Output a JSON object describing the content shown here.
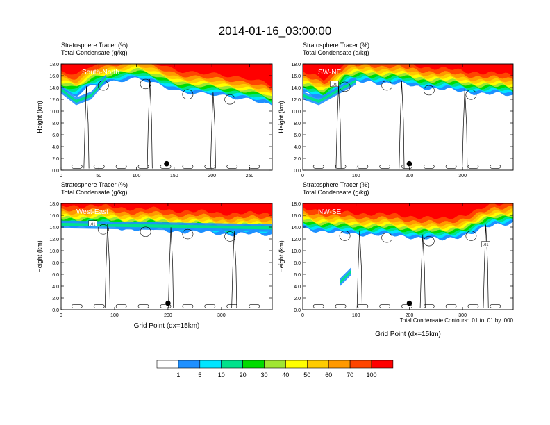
{
  "figure": {
    "title": "2014-01-16_03:00:00",
    "contour_note": "Total Condensate Contours: .01 to .01 by .000",
    "colorbar": {
      "colors": [
        "#ffffff",
        "#1e90ff",
        "#00e5ff",
        "#00e28c",
        "#00dc00",
        "#a0e632",
        "#ffff00",
        "#ffcc00",
        "#ff9900",
        "#ff4500",
        "#ff0000"
      ],
      "labels": [
        "1",
        "5",
        "10",
        "20",
        "30",
        "40",
        "50",
        "60",
        "70",
        "100"
      ]
    }
  },
  "chart_data": [
    {
      "type": "heatmap",
      "title_line1": "Stratosphere Tracer   (%)",
      "title_line2": "Total Condensate   (g/kg)",
      "panel_label": "South-North",
      "xlabel": "",
      "ylabel": "Height (km)",
      "xlim": [
        0,
        280
      ],
      "ylim": [
        0,
        18
      ],
      "xticks": [
        "0",
        "50",
        "100",
        "150",
        "200",
        "250"
      ],
      "yticks": [
        "0.0",
        "2.0",
        "4.0",
        "6.0",
        "8.0",
        "10.0",
        "12.0",
        "14.0",
        "16.0",
        "18.0"
      ],
      "contour_label": "",
      "location_marker_x": 140,
      "tropopause_km": [
        [
          0,
          14.5
        ],
        [
          20,
          13.6
        ],
        [
          40,
          15.4
        ],
        [
          70,
          16.4
        ],
        [
          100,
          16.6
        ],
        [
          130,
          15.6
        ],
        [
          160,
          14.6
        ],
        [
          190,
          14.0
        ],
        [
          220,
          13.6
        ],
        [
          250,
          13.4
        ],
        [
          270,
          12.6
        ],
        [
          280,
          11.8
        ]
      ],
      "anvil_region": [
        [
          0,
          13.0
        ],
        [
          20,
          11.0
        ],
        [
          40,
          12.0
        ],
        [
          60,
          15.0
        ]
      ]
    },
    {
      "type": "heatmap",
      "title_line1": "Stratosphere Tracer   (%)",
      "title_line2": "Total Condensate   (g/kg)",
      "panel_label": "SW-NE",
      "xlabel": "",
      "ylabel": "Height (km)",
      "xlim": [
        0,
        395
      ],
      "ylim": [
        0,
        18
      ],
      "xticks": [
        "0",
        "100",
        "200",
        "300"
      ],
      "yticks": [
        "0.0",
        "2.0",
        "4.0",
        "6.0",
        "8.0",
        "10.0",
        "12.0",
        "14.0",
        "16.0",
        "18.0"
      ],
      "contour_label": ".01",
      "location_marker_x": 200,
      "tropopause_km": [
        [
          0,
          14.2
        ],
        [
          40,
          13.2
        ],
        [
          80,
          15.8
        ],
        [
          120,
          16.2
        ],
        [
          180,
          15.8
        ],
        [
          230,
          15.2
        ],
        [
          290,
          14.6
        ],
        [
          340,
          14.2
        ],
        [
          395,
          13.8
        ]
      ],
      "anvil_region": [
        [
          0,
          12.0
        ],
        [
          30,
          11.0
        ],
        [
          60,
          12.5
        ],
        [
          100,
          14.5
        ]
      ]
    },
    {
      "type": "heatmap",
      "title_line1": "Stratosphere Tracer   (%)",
      "title_line2": "Total Condensate   (g/kg)",
      "panel_label": "West-East",
      "xlabel": "Grid Point (dx=15km)",
      "ylabel": "Height (km)",
      "xlim": [
        0,
        395
      ],
      "ylim": [
        0,
        18
      ],
      "xticks": [
        "0",
        "100",
        "200",
        "300"
      ],
      "yticks": [
        "0.0",
        "2.0",
        "4.0",
        "6.0",
        "8.0",
        "10.0",
        "12.0",
        "14.0",
        "16.0",
        "18.0"
      ],
      "contour_label": ".01",
      "location_marker_x": 200,
      "tropopause_km": [
        [
          0,
          15.2
        ],
        [
          60,
          15.4
        ],
        [
          100,
          15.0
        ],
        [
          160,
          14.8
        ],
        [
          240,
          14.4
        ],
        [
          320,
          14.0
        ],
        [
          395,
          14.0
        ]
      ],
      "anvil_region": [
        [
          0,
          13.8
        ],
        [
          395,
          13.2
        ]
      ]
    },
    {
      "type": "heatmap",
      "title_line1": "Stratosphere Tracer   (%)",
      "title_line2": "Total Condensate   (g/kg)",
      "panel_label": "NW-SE",
      "xlabel": "Grid Point (dx=15km)",
      "ylabel": "Height (km)",
      "xlim": [
        0,
        395
      ],
      "ylim": [
        0,
        18
      ],
      "xticks": [
        "0",
        "100",
        "200",
        "300"
      ],
      "yticks": [
        "0.0",
        "2.0",
        "4.0",
        "6.0",
        "8.0",
        "10.0",
        "12.0",
        "14.0",
        "16.0",
        "18.0"
      ],
      "contour_label": ".01",
      "location_marker_x": 200,
      "tropopause_km": [
        [
          0,
          15.0
        ],
        [
          60,
          14.2
        ],
        [
          120,
          14.0
        ],
        [
          200,
          13.6
        ],
        [
          260,
          13.0
        ],
        [
          320,
          14.2
        ],
        [
          360,
          15.6
        ],
        [
          395,
          16.0
        ]
      ],
      "anvil_region": [
        [
          70,
          4.0
        ],
        [
          90,
          5.8
        ]
      ]
    }
  ]
}
